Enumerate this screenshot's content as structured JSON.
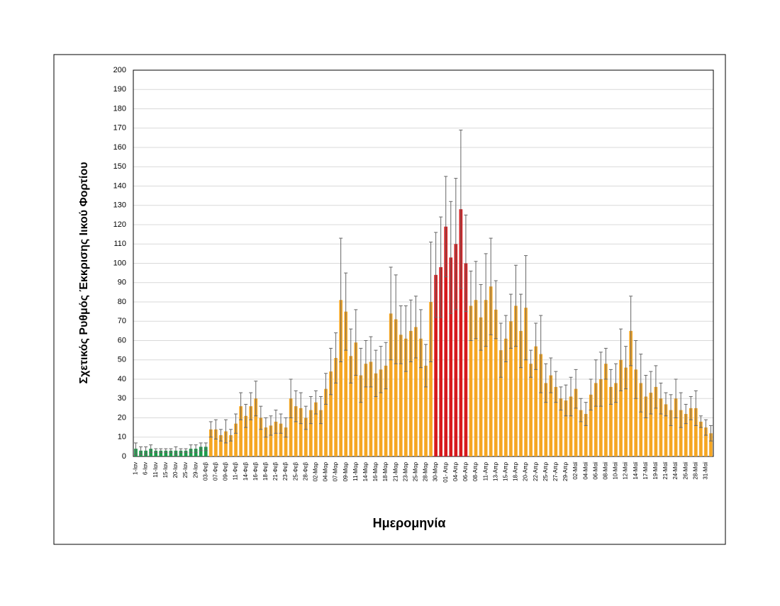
{
  "chart_data": {
    "type": "bar",
    "y_label": "Σχετικός Ρυθμός Έκκρισης Ιικού Φορτίου",
    "x_label": "Ημερομηνία",
    "categories": [
      "1-Ιαν",
      null,
      "6-Ιαν",
      null,
      "11-Ιαν",
      null,
      "15-Ιαν",
      null,
      "20-Ιαν",
      null,
      "25-Ιαν",
      null,
      "29-Ιαν",
      null,
      "03-Φεβ",
      null,
      "07-Φεβ",
      null,
      "09-Φεβ",
      null,
      "11-Φεβ",
      null,
      "14-Φεβ",
      null,
      "16-Φεβ",
      null,
      "18-Φεβ",
      null,
      "21-Φεβ",
      null,
      "23-Φεβ",
      null,
      "25-Φεβ",
      null,
      "28-Φεβ",
      null,
      "02-Μαρ",
      null,
      "04-Μαρ",
      null,
      "07-Μαρ",
      null,
      "09-Μαρ",
      null,
      "11-Μαρ",
      null,
      "14-Μαρ",
      null,
      "16-Μαρ",
      null,
      "18-Μαρ",
      null,
      "21-Μαρ",
      null,
      "23-Μαρ",
      null,
      "25-Μαρ",
      null,
      "28-Μαρ",
      null,
      "30-Μαρ",
      null,
      "01- Απρ",
      null,
      "04-Απρ",
      null,
      "06-Απρ",
      null,
      "08-Απρ",
      null,
      "11-Απρ",
      null,
      "13-Απρ",
      null,
      "15-Απρ",
      null,
      "18-Απρ",
      null,
      "20-Απρ",
      null,
      "22-Απρ",
      null,
      "25-Απρ",
      null,
      "27-Απρ",
      null,
      "29-Απρ",
      null,
      "02-Μαϊ",
      null,
      "04-Μαϊ",
      null,
      "06-Μαϊ",
      null,
      "08-Μαϊ",
      null,
      "10-Μαϊ",
      null,
      "12-Μαϊ",
      null,
      "14-Μαϊ",
      null,
      "17-Μαϊ",
      null,
      "19-Μαϊ",
      null,
      "21-Μαϊ",
      null,
      "24-Μαϊ",
      null,
      "26-Μαϊ",
      null,
      "28-Μαϊ",
      null,
      "31-Μαϊ",
      null
    ],
    "values": [
      4,
      3,
      3,
      4,
      3,
      3,
      3,
      3,
      3,
      3,
      3,
      4,
      4,
      5,
      5,
      14,
      14,
      11,
      13,
      11,
      17,
      26,
      21,
      26,
      30,
      20,
      15,
      16,
      18,
      17,
      15,
      30,
      26,
      25,
      20,
      24,
      28,
      24,
      35,
      44,
      51,
      81,
      75,
      52,
      59,
      42,
      48,
      49,
      43,
      45,
      47,
      74,
      71,
      63,
      61,
      65,
      67,
      61,
      47,
      80,
      94,
      98,
      119,
      103,
      110,
      128,
      100,
      78,
      81,
      72,
      81,
      88,
      76,
      55,
      61,
      70,
      78,
      65,
      77,
      48,
      57,
      53,
      38,
      42,
      36,
      30,
      29,
      31,
      35,
      24,
      22,
      32,
      38,
      40,
      48,
      36,
      38,
      50,
      46,
      65,
      45,
      38,
      31,
      33,
      36,
      30,
      27,
      24,
      30,
      24,
      22,
      25,
      25,
      18,
      15,
      12
    ],
    "errors": [
      3,
      2,
      2,
      2,
      1,
      1,
      1,
      1,
      2,
      1,
      1,
      2,
      2,
      2,
      2,
      4,
      5,
      3,
      6,
      3,
      5,
      7,
      6,
      7,
      9,
      6,
      5,
      5,
      6,
      5,
      5,
      10,
      8,
      8,
      6,
      7,
      6,
      7,
      8,
      12,
      13,
      32,
      20,
      14,
      17,
      14,
      12,
      13,
      12,
      12,
      12,
      24,
      23,
      15,
      17,
      16,
      16,
      15,
      11,
      31,
      22,
      26,
      26,
      29,
      34,
      41,
      25,
      18,
      20,
      17,
      24,
      25,
      15,
      14,
      12,
      14,
      21,
      19,
      27,
      7,
      12,
      20,
      10,
      9,
      8,
      6,
      8,
      10,
      10,
      6,
      6,
      8,
      12,
      14,
      8,
      9,
      10,
      16,
      11,
      18,
      15,
      15,
      11,
      11,
      11,
      8,
      6,
      8,
      10,
      9,
      5,
      6,
      9,
      3,
      4,
      4
    ],
    "colors": [
      "#1e9b4b",
      "#1e9b4b",
      "#1e9b4b",
      "#1e9b4b",
      "#1e9b4b",
      "#1e9b4b",
      "#1e9b4b",
      "#1e9b4b",
      "#1e9b4b",
      "#1e9b4b",
      "#1e9b4b",
      "#1e9b4b",
      "#1e9b4b",
      "#1e9b4b",
      "#1e9b4b",
      "#f5a623",
      "#f5a623",
      "#f5a623",
      "#f5a623",
      "#f5a623",
      "#f5a623",
      "#f5a623",
      "#f5a623",
      "#f5a623",
      "#f5a623",
      "#f5a623",
      "#f5a623",
      "#f5a623",
      "#f5a623",
      "#f5a623",
      "#f5a623",
      "#f5a623",
      "#f5a623",
      "#f5a623",
      "#f5a623",
      "#f5a623",
      "#f5a623",
      "#f5a623",
      "#f5a623",
      "#f5a623",
      "#f5a623",
      "#f5a623",
      "#f5a623",
      "#f5a623",
      "#f5a623",
      "#f5a623",
      "#f5a623",
      "#f5a623",
      "#f5a623",
      "#f5a623",
      "#f5a623",
      "#f5a623",
      "#f5a623",
      "#f5a623",
      "#f5a623",
      "#f5a623",
      "#f5a623",
      "#f5a623",
      "#f5a623",
      "#f5a623",
      "#d7191c",
      "#d7191c",
      "#d7191c",
      "#d7191c",
      "#d7191c",
      "#d7191c",
      "#d7191c",
      "#f5a623",
      "#f5a623",
      "#f5a623",
      "#f5a623",
      "#f5a623",
      "#f5a623",
      "#f5a623",
      "#f5a623",
      "#f5a623",
      "#f5a623",
      "#f5a623",
      "#f5a623",
      "#f5a623",
      "#f5a623",
      "#f5a623",
      "#f5a623",
      "#f5a623",
      "#f5a623",
      "#f5a623",
      "#f5a623",
      "#f5a623",
      "#f5a623",
      "#f5a623",
      "#f5a623",
      "#f5a623",
      "#f5a623",
      "#f5a623",
      "#f5a623",
      "#f5a623",
      "#f5a623",
      "#f5a623",
      "#f5a623",
      "#f5a623",
      "#f5a623",
      "#f5a623",
      "#f5a623",
      "#f5a623",
      "#f5a623",
      "#f5a623",
      "#f5a623",
      "#f5a623",
      "#f5a623",
      "#f5a623",
      "#f5a623",
      "#f5a623",
      "#f5a623",
      "#f5a623",
      "#f5a623",
      "#f5a623"
    ],
    "ylim": [
      0,
      200
    ],
    "yticks": [
      0,
      10,
      20,
      30,
      40,
      50,
      60,
      70,
      80,
      90,
      100,
      110,
      120,
      130,
      140,
      150,
      160,
      170,
      180,
      190,
      200
    ],
    "grid": true
  }
}
